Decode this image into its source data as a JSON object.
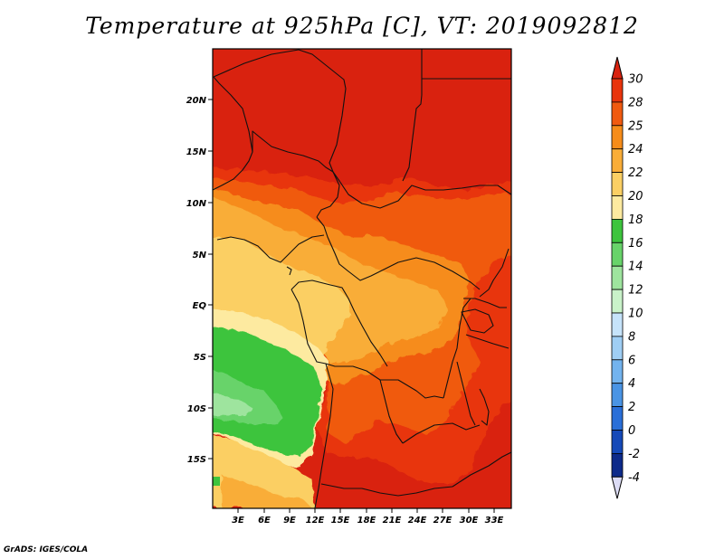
{
  "title": "Temperature at 925hPa [C], VT: 2019092812",
  "credit": "GrADS: IGES/COLA",
  "map": {
    "lat_labels": [
      "20N",
      "15N",
      "10N",
      "5N",
      "EQ",
      "5S",
      "10S",
      "15S"
    ],
    "lon_labels": [
      "3E",
      "6E",
      "9E",
      "12E",
      "15E",
      "18E",
      "21E",
      "24E",
      "27E",
      "30E",
      "33E"
    ]
  },
  "colorbar": {
    "levels": [
      "30",
      "28",
      "25",
      "24",
      "22",
      "20",
      "18",
      "16",
      "14",
      "12",
      "10",
      "8",
      "6",
      "4",
      "2",
      "0",
      "-2",
      "-4"
    ],
    "colors": {
      "above_30": "#d9220f",
      "28_30": "#e8340c",
      "25_28": "#f05a10",
      "24_25": "#f68c1a",
      "22_24": "#f9ad38",
      "20_22": "#fbcf64",
      "18_20": "#fdeaa0",
      "16_18": "#3dc43d",
      "14_16": "#68d36a",
      "12_14": "#9ee49e",
      "10_12": "#c9f2c9",
      "8_10": "#c6e3fa",
      "6_8": "#9fcef4",
      "4_6": "#73b3ee",
      "2_4": "#4a94e4",
      "0_2": "#2a6fd8",
      "m2_0": "#1549b8",
      "m4_m2": "#0d2a8a",
      "below_m4": "#1a1468",
      "lower_arrow": "#dcdcf5"
    }
  }
}
